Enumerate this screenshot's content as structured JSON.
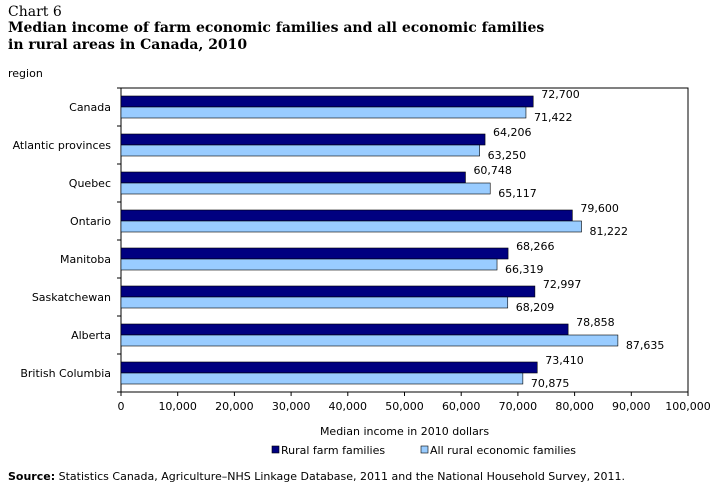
{
  "header": {
    "chart_number": "Chart 6",
    "title_line1": "Median income of farm economic families and all economic families",
    "title_line2": "in rural areas in Canada, 2010"
  },
  "source": {
    "label": "Source:",
    "text": " Statistics Canada, Agriculture–NHS Linkage Database, 2011 and the National Household Survey, 2011."
  },
  "colors": {
    "rural_farm": "#000080",
    "all_rural": "#99ccff",
    "bar_stroke": "#000000",
    "plot_border": "#000000"
  },
  "chart_data": {
    "type": "bar",
    "orientation": "horizontal",
    "ylabel": "region",
    "xlabel": "Median income in 2010 dollars",
    "xlim": [
      0,
      100000
    ],
    "xticks": [
      0,
      10000,
      20000,
      30000,
      40000,
      50000,
      60000,
      70000,
      80000,
      90000,
      100000
    ],
    "xtick_labels": [
      "0",
      "10,000",
      "20,000",
      "30,000",
      "40,000",
      "50,000",
      "60,000",
      "70,000",
      "80,000",
      "90,000",
      "100,000"
    ],
    "grid": false,
    "legend_position": "bottom",
    "categories": [
      "Canada",
      "Atlantic provinces",
      "Quebec",
      "Ontario",
      "Manitoba",
      "Saskatchewan",
      "Alberta",
      "British Columbia"
    ],
    "series": [
      {
        "name": "Rural farm families",
        "color": "#000080",
        "values": [
          72700,
          64206,
          60748,
          79600,
          68266,
          72997,
          78858,
          73410
        ],
        "labels": [
          "72,700",
          "64,206",
          "60,748",
          "79,600",
          "68,266",
          "72,997",
          "78,858",
          "73,410"
        ]
      },
      {
        "name": "All rural economic families",
        "color": "#99ccff",
        "values": [
          71422,
          63250,
          65117,
          81222,
          66319,
          68209,
          87635,
          70875
        ],
        "labels": [
          "71,422",
          "63,250",
          "65,117",
          "81,222",
          "66,319",
          "68,209",
          "87,635",
          "70,875"
        ]
      }
    ]
  }
}
